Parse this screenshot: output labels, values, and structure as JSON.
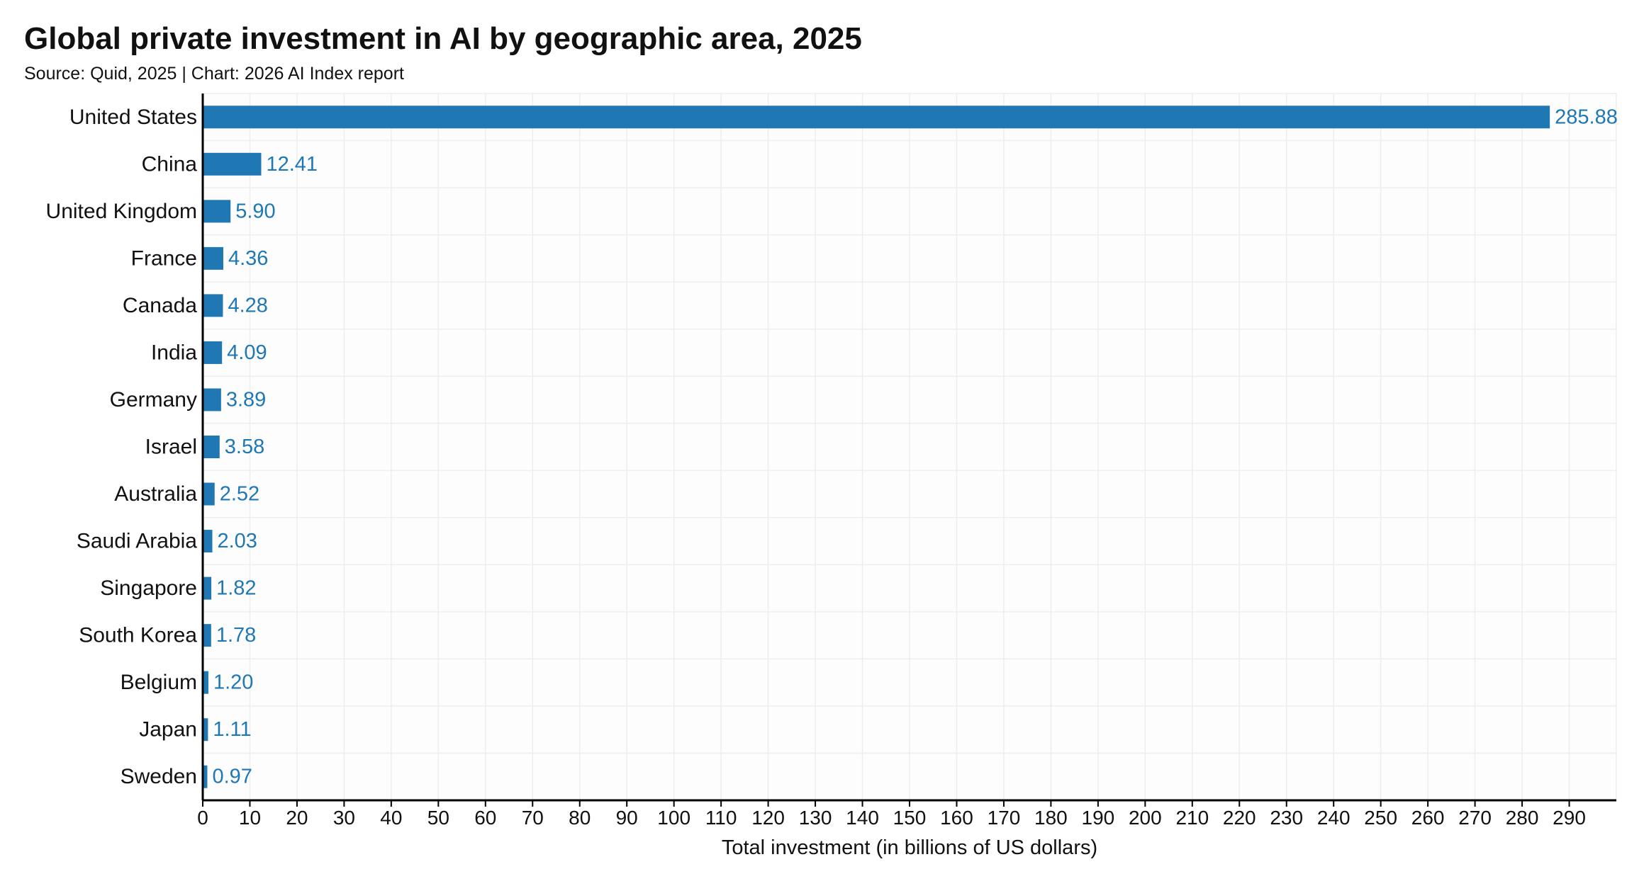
{
  "chart_data": {
    "type": "bar",
    "orientation": "horizontal",
    "title": "Global private investment in AI by geographic area, 2025",
    "subtitle": "Source: Quid, 2025 | Chart: 2026 AI Index report",
    "xlabel": "Total investment (in billions of US dollars)",
    "ylabel": "",
    "xlim": [
      0,
      300
    ],
    "xticks": [
      0,
      10,
      20,
      30,
      40,
      50,
      60,
      70,
      80,
      90,
      100,
      110,
      120,
      130,
      140,
      150,
      160,
      170,
      180,
      190,
      200,
      210,
      220,
      230,
      240,
      250,
      260,
      270,
      280,
      290
    ],
    "grid": true,
    "categories": [
      "United States",
      "China",
      "United Kingdom",
      "France",
      "Canada",
      "India",
      "Germany",
      "Israel",
      "Australia",
      "Saudi Arabia",
      "Singapore",
      "South Korea",
      "Belgium",
      "Japan",
      "Sweden"
    ],
    "values": [
      285.88,
      12.41,
      5.9,
      4.36,
      4.28,
      4.09,
      3.89,
      3.58,
      2.52,
      2.03,
      1.82,
      1.78,
      1.2,
      1.11,
      0.97
    ],
    "value_labels": [
      "285.88",
      "12.41",
      "5.90",
      "4.36",
      "4.28",
      "4.09",
      "3.89",
      "3.58",
      "2.52",
      "2.03",
      "1.82",
      "1.78",
      "1.20",
      "1.11",
      "0.97"
    ],
    "colors": {
      "bar": "#1f77b4",
      "value_label": "#1f77b4",
      "text": "#111111",
      "grid": "#eeeeee",
      "axis": "#000000"
    }
  }
}
